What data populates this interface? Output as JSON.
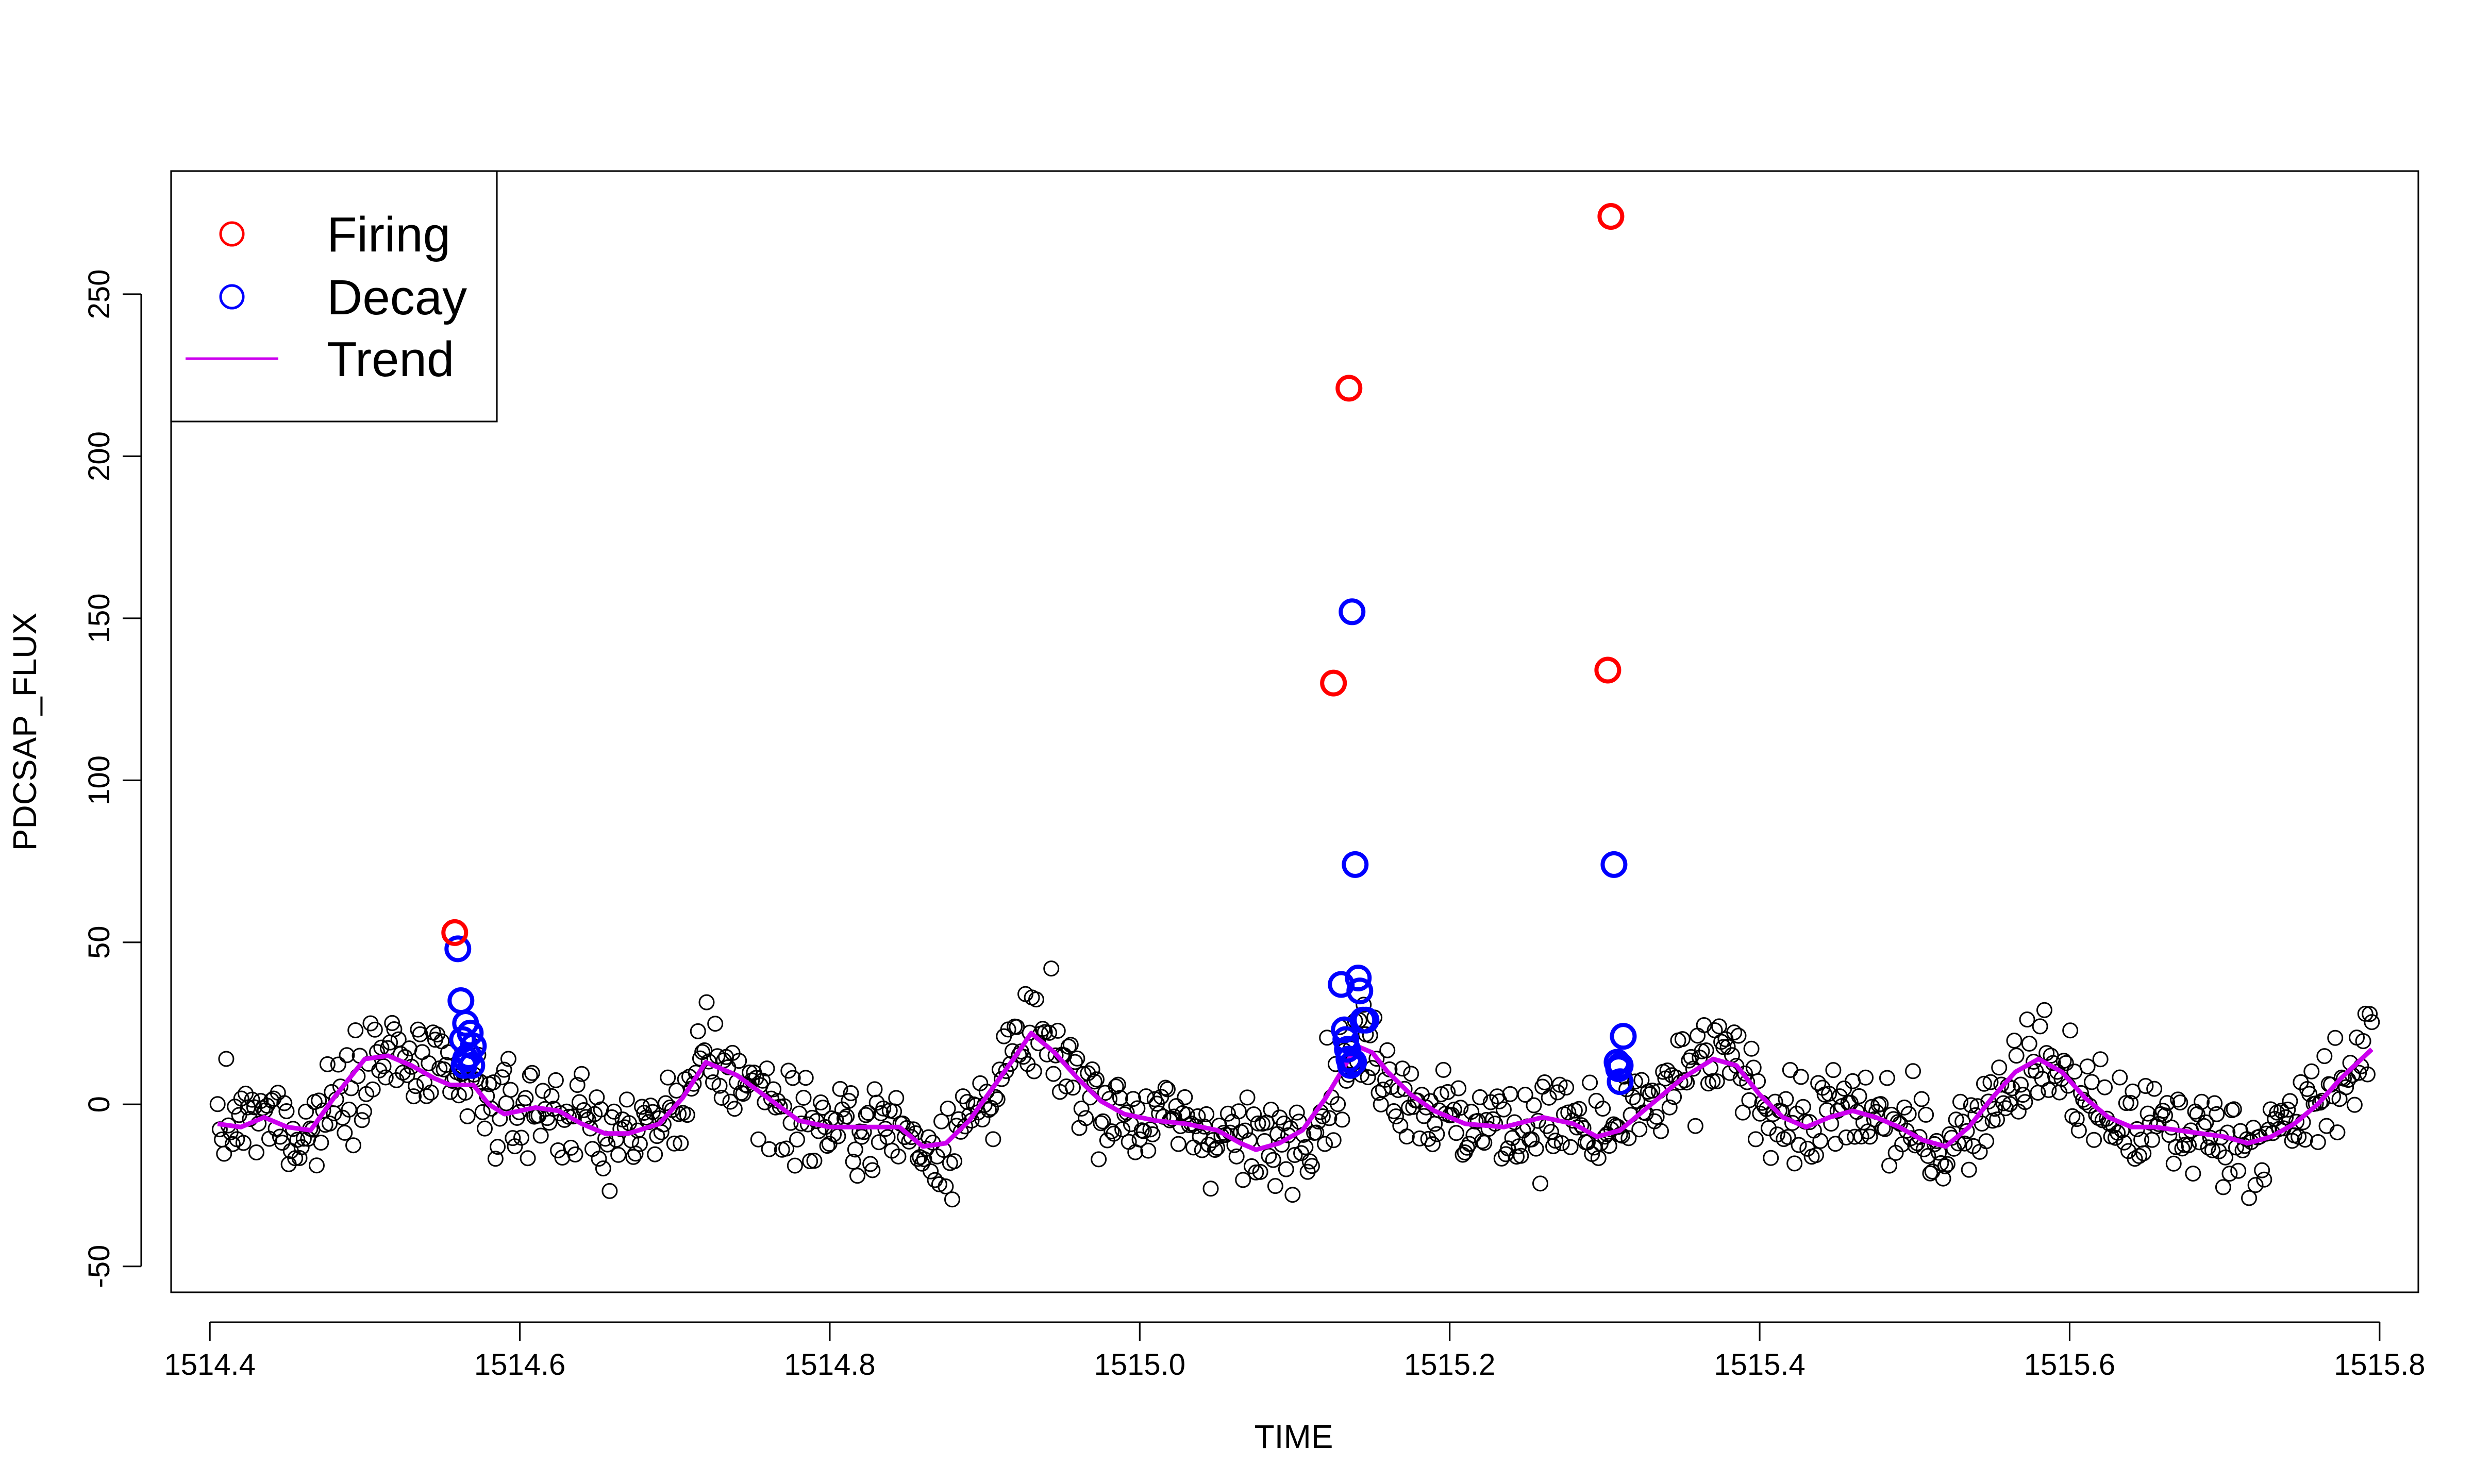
{
  "chart_data": {
    "type": "scatter",
    "xlabel": "TIME",
    "ylabel": "PDCSAP_FLUX",
    "xlim": [
      1514.375,
      1515.825
    ],
    "ylim": [
      -58,
      288
    ],
    "x_ticks": [
      1514.4,
      1514.6,
      1514.8,
      1515.0,
      1515.2,
      1515.4,
      1515.6,
      1515.8
    ],
    "x_tick_labels": [
      "1514.4",
      "1514.6",
      "1514.8",
      "1515.0",
      "1515.2",
      "1515.4",
      "1515.6",
      "1515.8"
    ],
    "y_ticks": [
      -50,
      0,
      50,
      100,
      150,
      200,
      250
    ],
    "y_tick_labels": [
      "-50",
      "0",
      "50",
      "100",
      "150",
      "200",
      "250"
    ],
    "grid": false,
    "legend": {
      "position": "top-left",
      "entries": [
        {
          "label": "Firing",
          "symbol": "circle",
          "color": "#ff0000"
        },
        {
          "label": "Decay",
          "symbol": "circle",
          "color": "#0000ff"
        },
        {
          "label": "Trend",
          "symbol": "line",
          "color": "#cc00ee"
        }
      ]
    },
    "colors": {
      "data": "#000000",
      "firing": "#ff0000",
      "decay": "#0000ff",
      "trend": "#cc00ee"
    },
    "series": [
      {
        "name": "Firing",
        "points": [
          [
            1514.558,
            53
          ],
          [
            1515.125,
            130
          ],
          [
            1515.135,
            221
          ],
          [
            1515.302,
            134
          ],
          [
            1515.304,
            274
          ]
        ]
      },
      {
        "name": "Decay",
        "points": [
          [
            1514.56,
            48
          ],
          [
            1514.562,
            32
          ],
          [
            1514.563,
            20
          ],
          [
            1514.565,
            25
          ],
          [
            1514.567,
            15
          ],
          [
            1514.568,
            22
          ],
          [
            1514.569,
            12
          ],
          [
            1514.57,
            18
          ],
          [
            1514.565,
            14
          ],
          [
            1514.564,
            12
          ],
          [
            1515.13,
            37
          ],
          [
            1515.132,
            23
          ],
          [
            1515.133,
            20
          ],
          [
            1515.134,
            17
          ],
          [
            1515.135,
            14
          ],
          [
            1515.136,
            12
          ],
          [
            1515.138,
            13
          ],
          [
            1515.137,
            152
          ],
          [
            1515.139,
            74
          ],
          [
            1515.141,
            39
          ],
          [
            1515.142,
            35
          ],
          [
            1515.144,
            26
          ],
          [
            1515.146,
            26
          ],
          [
            1515.306,
            74
          ],
          [
            1515.308,
            13
          ],
          [
            1515.309,
            11
          ],
          [
            1515.31,
            7
          ],
          [
            1515.312,
            21
          ],
          [
            1515.31,
            12
          ]
        ]
      },
      {
        "name": "Trend",
        "points": [
          [
            1514.405,
            -6
          ],
          [
            1514.42,
            -7
          ],
          [
            1514.435,
            -4
          ],
          [
            1514.45,
            -7
          ],
          [
            1514.465,
            -8
          ],
          [
            1514.48,
            2
          ],
          [
            1514.5,
            14
          ],
          [
            1514.515,
            15
          ],
          [
            1514.53,
            12
          ],
          [
            1514.545,
            8
          ],
          [
            1514.555,
            6
          ],
          [
            1514.57,
            6
          ],
          [
            1514.58,
            0
          ],
          [
            1514.59,
            -3
          ],
          [
            1514.6,
            -2
          ],
          [
            1514.61,
            -1
          ],
          [
            1514.625,
            -2
          ],
          [
            1514.64,
            -6
          ],
          [
            1514.655,
            -9
          ],
          [
            1514.67,
            -9
          ],
          [
            1514.69,
            -6
          ],
          [
            1514.705,
            2
          ],
          [
            1514.72,
            13
          ],
          [
            1514.74,
            9
          ],
          [
            1514.76,
            2
          ],
          [
            1514.78,
            -5
          ],
          [
            1514.8,
            -7
          ],
          [
            1514.82,
            -7
          ],
          [
            1514.845,
            -7
          ],
          [
            1514.86,
            -13
          ],
          [
            1514.875,
            -12
          ],
          [
            1514.89,
            -5
          ],
          [
            1514.905,
            5
          ],
          [
            1514.92,
            15
          ],
          [
            1514.93,
            22
          ],
          [
            1514.945,
            16
          ],
          [
            1514.96,
            8
          ],
          [
            1514.975,
            1
          ],
          [
            1514.99,
            -3
          ],
          [
            1515.01,
            -5
          ],
          [
            1515.03,
            -6
          ],
          [
            1515.05,
            -8
          ],
          [
            1515.065,
            -12
          ],
          [
            1515.075,
            -14
          ],
          [
            1515.09,
            -12
          ],
          [
            1515.105,
            -8
          ],
          [
            1515.12,
            2
          ],
          [
            1515.13,
            10
          ],
          [
            1515.14,
            18
          ],
          [
            1515.15,
            16
          ],
          [
            1515.16,
            10
          ],
          [
            1515.175,
            3
          ],
          [
            1515.19,
            -2
          ],
          [
            1515.21,
            -6
          ],
          [
            1515.235,
            -7
          ],
          [
            1515.26,
            -4
          ],
          [
            1515.28,
            -6
          ],
          [
            1515.295,
            -10
          ],
          [
            1515.31,
            -8
          ],
          [
            1515.33,
            0
          ],
          [
            1515.35,
            8
          ],
          [
            1515.37,
            14
          ],
          [
            1515.385,
            12
          ],
          [
            1515.4,
            3
          ],
          [
            1515.415,
            -4
          ],
          [
            1515.43,
            -7
          ],
          [
            1515.445,
            -4
          ],
          [
            1515.46,
            -2
          ],
          [
            1515.475,
            -4
          ],
          [
            1515.49,
            -7
          ],
          [
            1515.505,
            -11
          ],
          [
            1515.52,
            -13
          ],
          [
            1515.535,
            -7
          ],
          [
            1515.55,
            2
          ],
          [
            1515.565,
            10
          ],
          [
            1515.58,
            14
          ],
          [
            1515.595,
            10
          ],
          [
            1515.61,
            2
          ],
          [
            1515.625,
            -4
          ],
          [
            1515.64,
            -7
          ],
          [
            1515.655,
            -7
          ],
          [
            1515.67,
            -8
          ],
          [
            1515.685,
            -9
          ],
          [
            1515.7,
            -10
          ],
          [
            1515.715,
            -12
          ],
          [
            1515.73,
            -10
          ],
          [
            1515.745,
            -6
          ],
          [
            1515.76,
            0
          ],
          [
            1515.775,
            8
          ],
          [
            1515.795,
            17
          ]
        ]
      }
    ]
  }
}
